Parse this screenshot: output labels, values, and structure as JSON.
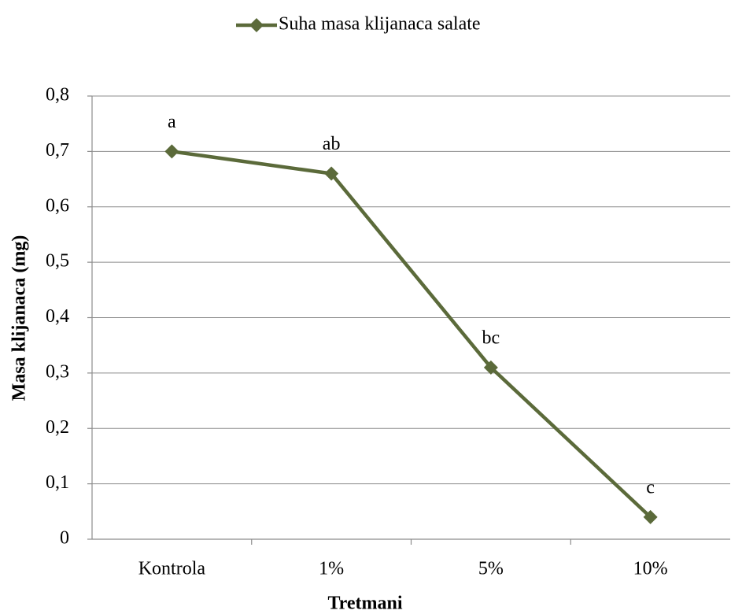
{
  "chart_data": {
    "type": "line",
    "categories": [
      "Kontrola",
      "1%",
      "5%",
      "10%"
    ],
    "series": [
      {
        "name": "Suha masa klijanaca salate",
        "color": "#5b6a3a",
        "values": [
          0.7,
          0.66,
          0.31,
          0.04
        ]
      }
    ],
    "annotations": [
      "a",
      "ab",
      "bc",
      "c"
    ],
    "xlabel": "Tretmani",
    "ylabel": "Masa klijanaca (mg)",
    "ylim": [
      0,
      0.8
    ],
    "yticks": [
      0,
      {
        "value": 0.1,
        "label": "0,1"
      },
      {
        "value": 0.2,
        "label": "0,2"
      },
      {
        "value": 0.3,
        "label": "0,3"
      },
      {
        "value": 0.4,
        "label": "0,4"
      },
      {
        "value": 0.5,
        "label": "0,5"
      },
      {
        "value": 0.6,
        "label": "0,6"
      },
      {
        "value": 0.7,
        "label": "0,7"
      },
      {
        "value": 0.8,
        "label": "0,8"
      }
    ],
    "grid": true,
    "legend": "top"
  }
}
